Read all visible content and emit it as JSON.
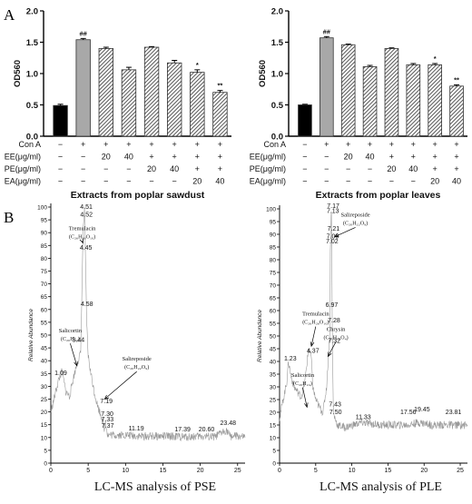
{
  "panel_labels": {
    "a": "A",
    "b": "B"
  },
  "colors": {
    "control": "#000000",
    "con_a": "#a8a8a8",
    "hatch": "#444444",
    "trace": "#999999",
    "text": "#111111"
  },
  "chart_data": [
    {
      "type": "bar",
      "title": "Extracts from poplar sawdust",
      "ylabel": "OD560",
      "ylim": [
        0,
        2.0
      ],
      "yticks": [
        "0.0",
        "0.5",
        "1.0",
        "1.5",
        "2.0"
      ],
      "values": [
        0.49,
        1.54,
        1.4,
        1.06,
        1.42,
        1.17,
        1.02,
        0.7
      ],
      "errors": [
        0.02,
        0.02,
        0.02,
        0.04,
        0.01,
        0.04,
        0.04,
        0.03
      ],
      "annotations": [
        "",
        "##",
        "",
        "",
        "",
        "",
        "*",
        "**"
      ],
      "row_labels": [
        "Con A",
        "EE(μg/ml)",
        "PE(μg/ml)",
        "EA(μg/ml)"
      ],
      "rows": [
        [
          "−",
          "+",
          "+",
          "+",
          "+",
          "+",
          "+",
          "+"
        ],
        [
          "−",
          "−",
          "20",
          "40",
          "+",
          "+",
          "+",
          "+"
        ],
        [
          "−",
          "−",
          "−",
          "−",
          "20",
          "40",
          "+",
          "+"
        ],
        [
          "−",
          "−",
          "−",
          "−",
          "−",
          "−",
          "20",
          "40"
        ]
      ]
    },
    {
      "type": "bar",
      "title": "Extracts from poplar leaves",
      "ylabel": "OD560",
      "ylim": [
        0,
        2.0
      ],
      "yticks": [
        "0.0",
        "0.5",
        "1.0",
        "1.5",
        "2.0"
      ],
      "values": [
        0.5,
        1.57,
        1.46,
        1.11,
        1.4,
        1.14,
        1.14,
        0.8
      ],
      "errors": [
        0.01,
        0.02,
        0.01,
        0.02,
        0.01,
        0.02,
        0.02,
        0.02
      ],
      "annotations": [
        "",
        "##",
        "",
        "",
        "",
        "",
        "*",
        "**"
      ],
      "row_labels": [
        "Con A",
        "EE(μg/ml)",
        "PE(μg/ml)",
        "EA(μg/ml)"
      ],
      "rows": [
        [
          "−",
          "+",
          "+",
          "+",
          "+",
          "+",
          "+",
          "+"
        ],
        [
          "−",
          "−",
          "20",
          "40",
          "+",
          "+",
          "+",
          "+"
        ],
        [
          "−",
          "−",
          "−",
          "−",
          "20",
          "40",
          "+",
          "+"
        ],
        [
          "−",
          "−",
          "−",
          "−",
          "−",
          "−",
          "20",
          "40"
        ]
      ]
    },
    {
      "type": "line",
      "title": "LC-MS analysis of PSE",
      "ylabel": "Relative Abundance",
      "xlim": [
        0,
        26
      ],
      "ylim": [
        0,
        100
      ],
      "xticks": [
        "0",
        "5",
        "10",
        "15",
        "20",
        "25"
      ],
      "yticks": [
        "0",
        "5",
        "10",
        "15",
        "20",
        "25",
        "30",
        "35",
        "40",
        "45",
        "50",
        "55",
        "60",
        "65",
        "70",
        "75",
        "80",
        "85",
        "90",
        "95",
        "100"
      ],
      "x": [
        0,
        0.5,
        1.0,
        1.5,
        2.0,
        2.5,
        3.0,
        3.5,
        4.0,
        4.3,
        4.45,
        4.51,
        4.6,
        4.8,
        5.0,
        5.3,
        5.8,
        6.3,
        6.8,
        7.2,
        7.3,
        7.6,
        8.5,
        10,
        12,
        14,
        16,
        18,
        20,
        22,
        23.48,
        24,
        25,
        26
      ],
      "y": [
        20,
        26,
        32,
        36,
        28,
        26,
        33,
        39,
        43,
        89,
        96,
        100,
        84,
        55,
        42,
        36,
        28,
        22,
        18,
        13,
        17,
        11,
        11,
        11,
        10.5,
        10.5,
        10.5,
        10.2,
        10.5,
        10.2,
        13,
        10.5,
        10.5,
        10
      ],
      "peak_labels": [
        {
          "x": 1.09,
          "y": 34,
          "text": "1.09"
        },
        {
          "x": 3.44,
          "y": 47,
          "text": "3.44"
        },
        {
          "x": 4.45,
          "y": 83,
          "text": "4.45"
        },
        {
          "x": 4.51,
          "y": 99,
          "text": "4.51"
        },
        {
          "x": 4.52,
          "y": 96,
          "text": "4.52"
        },
        {
          "x": 4.58,
          "y": 61,
          "text": "4.58"
        },
        {
          "x": 7.19,
          "y": 23,
          "text": "7.19"
        },
        {
          "x": 7.3,
          "y": 18,
          "text": "7.30"
        },
        {
          "x": 7.33,
          "y": 16,
          "text": "7.33"
        },
        {
          "x": 7.37,
          "y": 13.5,
          "text": "7.37"
        },
        {
          "x": 11.19,
          "y": 12.5,
          "text": "11.19"
        },
        {
          "x": 17.39,
          "y": 12,
          "text": "17.39"
        },
        {
          "x": 20.6,
          "y": 12,
          "text": "20.60"
        },
        {
          "x": 23.48,
          "y": 14.5,
          "text": "23.48"
        }
      ],
      "compounds": [
        {
          "name": "Tremulacin",
          "formula": "(C₂₆H₂₆O₁₀)",
          "tx": 4.2,
          "ty": 91,
          "ax": 4.3,
          "ay": 86
        },
        {
          "name": "Salicortin",
          "formula": "(C₂₀H₂₄)",
          "tx": 2.6,
          "ty": 51,
          "ax": 3.5,
          "ay": 38
        },
        {
          "name": "Salireposide",
          "formula": "(C₂₀H₂₂O₉)",
          "tx": 11.5,
          "ty": 40,
          "ax": 7.2,
          "ay": 25
        }
      ]
    },
    {
      "type": "line",
      "title": "LC-MS analysis of PLE",
      "ylabel": "Relative Abundance",
      "xlim": [
        0,
        26
      ],
      "ylim": [
        0,
        100
      ],
      "xticks": [
        "0",
        "5",
        "10",
        "15",
        "20",
        "25"
      ],
      "yticks": [
        "0",
        "5",
        "10",
        "15",
        "20",
        "25",
        "30",
        "35",
        "40",
        "45",
        "50",
        "55",
        "60",
        "65",
        "70",
        "75",
        "80",
        "85",
        "90",
        "95",
        "100"
      ],
      "x": [
        0,
        0.5,
        1.0,
        1.23,
        1.6,
        2.0,
        2.5,
        3.0,
        3.5,
        4.0,
        4.37,
        4.6,
        5.0,
        5.5,
        6.0,
        6.5,
        6.97,
        7.02,
        7.09,
        7.13,
        7.17,
        7.21,
        7.28,
        7.32,
        7.43,
        7.5,
        8,
        9,
        11.33,
        14,
        17.56,
        19.45,
        21,
        23.81,
        25,
        26
      ],
      "y": [
        18,
        25,
        32,
        40,
        34,
        30,
        28,
        26,
        32,
        45,
        42,
        30,
        25,
        22,
        20,
        30,
        52,
        85,
        88,
        97,
        100,
        89,
        55,
        47,
        22,
        19,
        15,
        14,
        16,
        15,
        15,
        16,
        15,
        15,
        15,
        15
      ],
      "peak_labels": [
        {
          "x": 1.23,
          "y": 40,
          "text": "1.23"
        },
        {
          "x": 4.37,
          "y": 43,
          "text": "4.37"
        },
        {
          "x": 6.97,
          "y": 61,
          "text": "6.97"
        },
        {
          "x": 7.02,
          "y": 86,
          "text": "7.02"
        },
        {
          "x": 7.09,
          "y": 88,
          "text": "7.09"
        },
        {
          "x": 7.13,
          "y": 98,
          "text": "7.13"
        },
        {
          "x": 7.17,
          "y": 100,
          "text": "7.17"
        },
        {
          "x": 7.21,
          "y": 91,
          "text": "7.21"
        },
        {
          "x": 7.28,
          "y": 55,
          "text": "7.28"
        },
        {
          "x": 7.32,
          "y": 47,
          "text": "7.32"
        },
        {
          "x": 7.43,
          "y": 22,
          "text": "7.43"
        },
        {
          "x": 7.5,
          "y": 19,
          "text": "7.50"
        },
        {
          "x": 11.33,
          "y": 17,
          "text": "11.33"
        },
        {
          "x": 17.56,
          "y": 19,
          "text": "17.56"
        },
        {
          "x": 19.45,
          "y": 20,
          "text": "19.45"
        },
        {
          "x": 23.81,
          "y": 19,
          "text": "23.81"
        }
      ],
      "compounds": [
        {
          "name": "Salireposide",
          "formula": "(C₂₀H₂₂O₉)",
          "tx": 10.5,
          "ty": 97,
          "ax": 7.6,
          "ay": 89
        },
        {
          "name": "Tremulacin",
          "formula": "(C₂₆H₂₆O₁₀)",
          "tx": 5.0,
          "ty": 58,
          "ax": 4.4,
          "ay": 46
        },
        {
          "name": "Chrysin",
          "formula": "(C₁₅H₁₀O₄)",
          "tx": 7.8,
          "ty": 52,
          "ax": 6.7,
          "ay": 42
        },
        {
          "name": "Salicortin",
          "formula": "(C₂₀H₂₄)",
          "tx": 3.2,
          "ty": 34,
          "ax": 3.8,
          "ay": 22
        }
      ]
    }
  ]
}
